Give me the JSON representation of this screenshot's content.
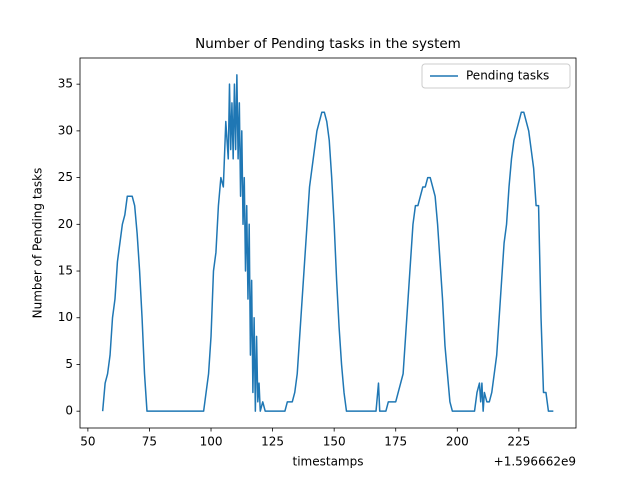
{
  "chart_data": {
    "type": "line",
    "title": "Number of Pending tasks in the system",
    "x_label": "timestamps",
    "y_label": "Number of Pending tasks",
    "x_offset_label": "+1.596662e9",
    "x": [
      1596662056,
      1596662057,
      1596662058,
      1596662059,
      1596662060,
      1596662061,
      1596662062,
      1596662063,
      1596662064,
      1596662065,
      1596662066,
      1596662067,
      1596662068,
      1596662069,
      1596662070,
      1596662071,
      1596662072,
      1596662073,
      1596662074,
      1596662097,
      1596662098,
      1596662099,
      1596662100,
      1596662101,
      1596662102,
      1596662103,
      1596662104,
      1596662105,
      1596662106,
      1596662107,
      1596662107.5,
      1596662108,
      1596662108.5,
      1596662109,
      1596662109.5,
      1596662110,
      1596662110.5,
      1596662111,
      1596662111.5,
      1596662112,
      1596662112.5,
      1596662113,
      1596662113.5,
      1596662114,
      1596662114.5,
      1596662115,
      1596662115.5,
      1596662116,
      1596662116.5,
      1596662117,
      1596662117.5,
      1596662118,
      1596662118.5,
      1596662119,
      1596662119.5,
      1596662120,
      1596662121,
      1596662122,
      1596662130,
      1596662131,
      1596662133,
      1596662134,
      1596662135,
      1596662136,
      1596662137,
      1596662138,
      1596662139,
      1596662140,
      1596662141,
      1596662142,
      1596662143,
      1596662144,
      1596662145,
      1596662146,
      1596662147,
      1596662148,
      1596662149,
      1596662150,
      1596662151,
      1596662152,
      1596662153,
      1596662154,
      1596662155,
      1596662167,
      1596662168,
      1596662168.5,
      1596662171,
      1596662172,
      1596662175,
      1596662176,
      1596662178,
      1596662179,
      1596662180,
      1596662181,
      1596662182,
      1596662183,
      1596662184,
      1596662185,
      1596662186,
      1596662187,
      1596662188,
      1596662189,
      1596662190,
      1596662191,
      1596662192,
      1596662193,
      1596662194,
      1596662195,
      1596662196,
      1596662197,
      1596662198,
      1596662207,
      1596662208,
      1596662209,
      1596662209.5,
      1596662210,
      1596662210.5,
      1596662211,
      1596662212,
      1596662213,
      1596662214,
      1596662215,
      1596662216,
      1596662217,
      1596662218,
      1596662219,
      1596662220,
      1596662221,
      1596662222,
      1596662223,
      1596662224,
      1596662225,
      1596662226,
      1596662227,
      1596662228,
      1596662229,
      1596662230,
      1596662231,
      1596662232,
      1596662233,
      1596662234,
      1596662235,
      1596662236,
      1596662237,
      1596662239
    ],
    "series": [
      {
        "name": "Pending tasks",
        "color": "#1f77b4",
        "values": [
          0,
          3,
          4,
          6,
          10,
          12,
          16,
          18,
          20,
          21,
          23,
          23,
          23,
          22,
          19,
          15,
          10,
          4,
          0,
          0,
          2,
          4,
          8,
          15,
          17,
          22,
          25,
          24,
          31,
          27,
          35,
          28,
          33,
          27,
          35,
          28,
          36,
          27,
          33,
          23,
          30,
          20,
          25,
          15,
          22,
          12,
          20,
          6,
          14,
          2,
          10,
          0,
          8,
          1,
          3,
          0,
          1,
          0,
          0,
          1,
          1,
          2,
          4,
          8,
          12,
          16,
          20,
          24,
          26,
          28,
          30,
          31,
          32,
          32,
          31,
          29,
          25,
          20,
          14,
          9,
          5,
          2,
          0,
          0,
          3,
          0,
          0,
          1,
          1,
          2,
          4,
          8,
          12,
          16,
          20,
          22,
          22,
          23,
          24,
          24,
          25,
          25,
          24,
          23,
          20,
          16,
          12,
          7,
          4,
          1,
          0,
          0,
          2,
          3,
          1,
          3,
          0,
          2,
          1,
          1,
          2,
          4,
          6,
          10,
          14,
          18,
          20,
          24,
          27,
          29,
          30,
          31,
          32,
          32,
          31,
          30,
          28,
          26,
          22,
          22,
          10,
          2,
          2,
          0,
          0
        ]
      }
    ],
    "xlim": [
      1596662046.8,
      1596662248.2
    ],
    "xticks": [
      {
        "value": 1596662050,
        "label": "50"
      },
      {
        "value": 1596662075,
        "label": "75"
      },
      {
        "value": 1596662100,
        "label": "100"
      },
      {
        "value": 1596662125,
        "label": "125"
      },
      {
        "value": 1596662150,
        "label": "150"
      },
      {
        "value": 1596662175,
        "label": "175"
      },
      {
        "value": 1596662200,
        "label": "200"
      },
      {
        "value": 1596662225,
        "label": "225"
      }
    ],
    "ylim": [
      -1.8,
      37.8
    ],
    "yticks": [
      0,
      5,
      10,
      15,
      20,
      25,
      30,
      35
    ],
    "grid": false,
    "legend": "upper right"
  }
}
